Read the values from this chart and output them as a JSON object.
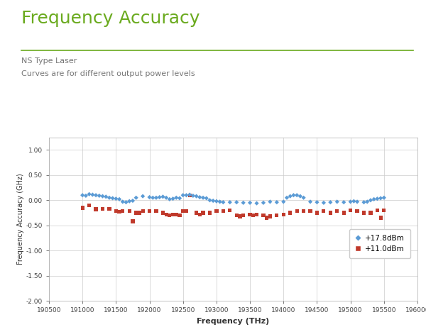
{
  "title": "Frequency Accuracy",
  "subtitle1": "NS Type Laser",
  "subtitle2": "Curves are for different output power levels",
  "xlabel": "Frequency (THz)",
  "ylabel": "Frequency Accuracy (GHz)",
  "xlim": [
    190500,
    196000
  ],
  "ylim": [
    -2.0,
    1.25
  ],
  "yticks": [
    -2.0,
    -1.5,
    -1.0,
    -0.5,
    0.0,
    0.5,
    1.0
  ],
  "xticks": [
    190500,
    191000,
    191500,
    192000,
    192500,
    193000,
    193500,
    194000,
    194500,
    195000,
    195500,
    196000
  ],
  "title_color": "#6aaa1e",
  "title_fontsize": 18,
  "subtitle_color": "#777777",
  "bg_color": "#ffffff",
  "legend_label1": "+17.8dBm",
  "legend_label2": "+11.0dBm",
  "blue_color": "#5B9BD5",
  "red_color": "#C0392B",
  "blue_x": [
    191000,
    191050,
    191100,
    191150,
    191200,
    191250,
    191300,
    191350,
    191400,
    191450,
    191500,
    191550,
    191600,
    191650,
    191700,
    191750,
    191800,
    191900,
    192000,
    192050,
    192100,
    192150,
    192200,
    192250,
    192300,
    192350,
    192400,
    192450,
    192500,
    192550,
    192600,
    192650,
    192700,
    192750,
    192800,
    192850,
    192900,
    192950,
    193000,
    193050,
    193100,
    193200,
    193300,
    193400,
    193500,
    193600,
    193700,
    193800,
    193900,
    194000,
    194050,
    194100,
    194150,
    194200,
    194250,
    194300,
    194400,
    194500,
    194600,
    194700,
    194800,
    194900,
    195000,
    195050,
    195100,
    195200,
    195250,
    195300,
    195350,
    195400,
    195450,
    195500
  ],
  "blue_y": [
    0.1,
    0.09,
    0.12,
    0.11,
    0.1,
    0.09,
    0.08,
    0.07,
    0.05,
    0.04,
    0.03,
    0.02,
    -0.03,
    -0.04,
    -0.02,
    -0.01,
    0.05,
    0.08,
    0.06,
    0.05,
    0.05,
    0.06,
    0.07,
    0.05,
    0.02,
    0.03,
    0.05,
    0.04,
    0.1,
    0.1,
    0.11,
    0.09,
    0.08,
    0.06,
    0.05,
    0.04,
    0.0,
    -0.01,
    -0.02,
    -0.03,
    -0.04,
    -0.04,
    -0.04,
    -0.05,
    -0.05,
    -0.06,
    -0.05,
    -0.03,
    -0.04,
    -0.03,
    0.05,
    0.08,
    0.1,
    0.1,
    0.08,
    0.05,
    -0.03,
    -0.04,
    -0.05,
    -0.04,
    -0.03,
    -0.04,
    -0.03,
    -0.02,
    -0.03,
    -0.04,
    -0.03,
    0.0,
    0.02,
    0.03,
    0.04,
    0.05
  ],
  "red_x": [
    191000,
    191100,
    191200,
    191300,
    191400,
    191500,
    191550,
    191600,
    191700,
    191750,
    191800,
    191850,
    191900,
    192000,
    192100,
    192200,
    192250,
    192300,
    192350,
    192400,
    192450,
    192500,
    192550,
    192600,
    192700,
    192750,
    192800,
    192900,
    193000,
    193100,
    193200,
    193300,
    193350,
    193400,
    193500,
    193550,
    193600,
    193700,
    193750,
    193800,
    193900,
    194000,
    194100,
    194200,
    194300,
    194400,
    194500,
    194600,
    194700,
    194800,
    194900,
    195000,
    195100,
    195200,
    195300,
    195400,
    195450,
    195500
  ],
  "red_y": [
    -0.15,
    -0.1,
    -0.18,
    -0.17,
    -0.17,
    -0.22,
    -0.23,
    -0.22,
    -0.22,
    -0.42,
    -0.25,
    -0.25,
    -0.22,
    -0.22,
    -0.22,
    -0.25,
    -0.28,
    -0.3,
    -0.28,
    -0.28,
    -0.3,
    -0.22,
    -0.22,
    0.1,
    -0.25,
    -0.28,
    -0.25,
    -0.25,
    -0.22,
    -0.22,
    -0.2,
    -0.3,
    -0.32,
    -0.3,
    -0.28,
    -0.3,
    -0.28,
    -0.3,
    -0.35,
    -0.32,
    -0.3,
    -0.28,
    -0.25,
    -0.22,
    -0.22,
    -0.22,
    -0.25,
    -0.22,
    -0.25,
    -0.22,
    -0.25,
    -0.2,
    -0.22,
    -0.25,
    -0.25,
    -0.2,
    -0.35,
    -0.2
  ]
}
